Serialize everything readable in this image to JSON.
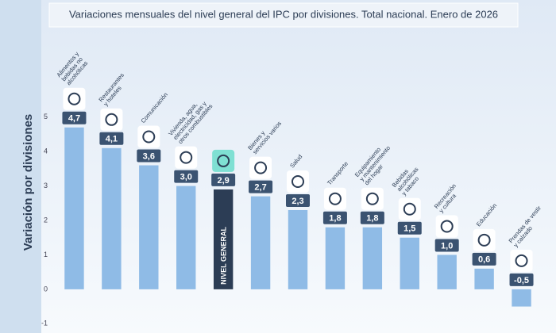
{
  "chart_data": {
    "type": "bar",
    "title": "Variaciones mensuales del nivel general del IPC por divisiones. Total nacional. Enero de 2026",
    "y_label": "Variación por divisiones",
    "categories": [
      [
        "Alimentos y",
        "bebidas no",
        "alcohólicas"
      ],
      [
        "Restaurantes",
        "y hoteles"
      ],
      [
        "Comunicación"
      ],
      [
        "Vivienda, agua,",
        "electricidad, gas y",
        "otros combustibles"
      ],
      [
        "NIVEL GENERAL"
      ],
      [
        "Bienes y",
        "servicios varios"
      ],
      [
        "Salud"
      ],
      [
        "Transporte"
      ],
      [
        "Equipamiento",
        "y mantenimiento",
        "del hogar"
      ],
      [
        "Bebidas",
        "alcohólicas",
        "y tabaco"
      ],
      [
        "Recreación",
        "y cultura"
      ],
      [
        "Educación"
      ],
      [
        "Prendas de vestir",
        "y calzado"
      ]
    ],
    "values": [
      4.7,
      4.1,
      3.6,
      3.0,
      2.9,
      2.7,
      2.3,
      1.8,
      1.8,
      1.5,
      1.0,
      0.6,
      -0.5
    ],
    "value_labels": [
      "4,7",
      "4,1",
      "3,6",
      "3,0",
      "2,9",
      "2,7",
      "2,3",
      "1,8",
      "1,8",
      "1,5",
      "1,0",
      "0,6",
      "-0,5"
    ],
    "color": "#8fbbe6",
    "highlight_color": "#2c3d55",
    "highlight_index": 4,
    "ylim": [
      -1.2,
      5.5
    ],
    "yticks": [
      -1,
      0,
      1,
      2,
      3,
      4,
      5
    ],
    "grid": false
  }
}
